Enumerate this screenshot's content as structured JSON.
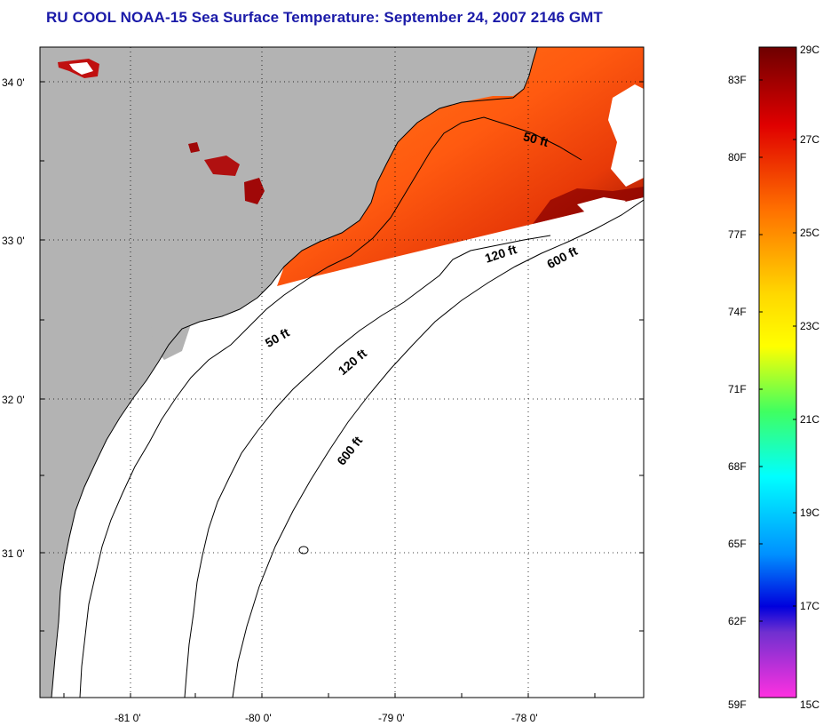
{
  "title": "RU COOL  NOAA-15  Sea Surface Temperature:  September 24, 2007 2146 GMT",
  "axes": {
    "lon_ticks": [
      "-81 0'",
      "-80 0'",
      "-79 0'",
      "-78 0'"
    ],
    "lat_ticks": [
      "34 0'",
      "33 0'",
      "32 0'",
      "31 0'"
    ]
  },
  "contours": {
    "upper_50": "50 ft",
    "upper_120": "120 ft",
    "upper_600": "600 ft",
    "lower_50": "50 ft",
    "lower_120": "120 ft",
    "lower_600": "600 ft"
  },
  "colorbar": {
    "fahrenheit": [
      "83F",
      "80F",
      "77F",
      "74F",
      "71F",
      "68F",
      "65F",
      "62F",
      "59F"
    ],
    "celsius": [
      "29C",
      "27C",
      "25C",
      "23C",
      "21C",
      "19C",
      "17C",
      "15C"
    ],
    "colors": {
      "top": "#6e0000",
      "red": "#e00000",
      "orange": "#ff7000",
      "yellow": "#ffff00",
      "green": "#40ff60",
      "cyan": "#00ffff",
      "blue": "#0050ff",
      "navy": "#0000cc",
      "magenta": "#ff30e0"
    }
  },
  "map_colors": {
    "land": "#b3b3b3",
    "sst_warm": "#ff6a10",
    "sst_hot": "#8a0000"
  }
}
